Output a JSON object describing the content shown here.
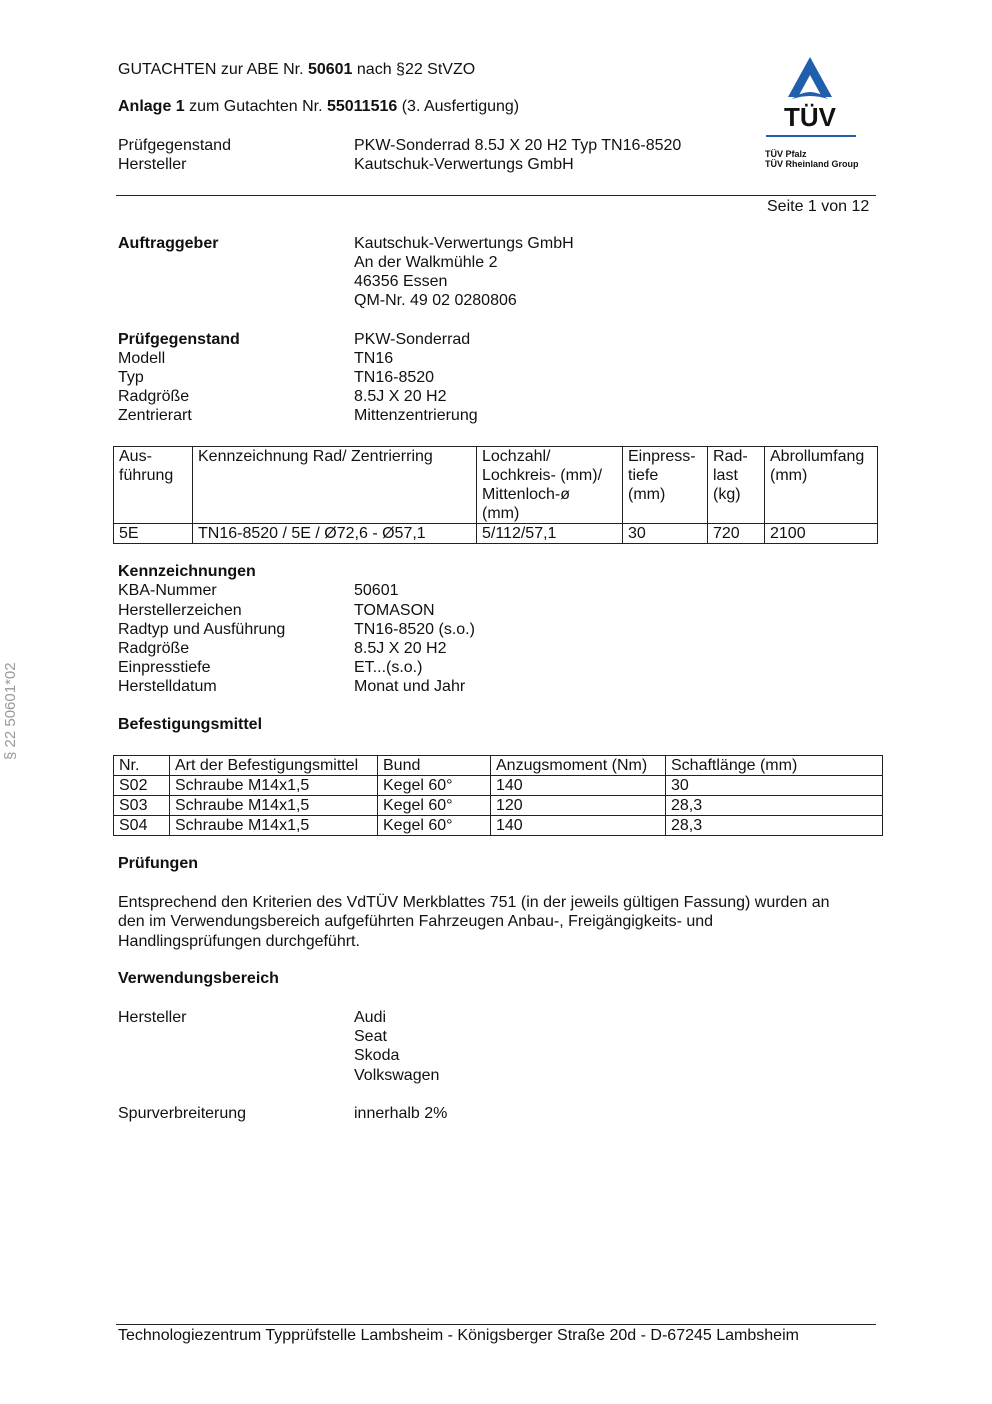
{
  "header": {
    "line1_pre": "GUTACHTEN zur ABE Nr. ",
    "line1_num": "50601",
    "line1_post": " nach §22 StVZO",
    "line2_pre": "Anlage 1",
    "line2_mid": " zum Gutachten Nr. ",
    "line2_num": "55011516",
    "line2_post": " (3. Ausfertigung)",
    "pruef_label": "Prüfgegenstand",
    "pruef_value": "PKW-Sonderrad 8.5J X 20 H2 Typ TN16-8520",
    "herst_label": "Hersteller",
    "herst_value": "Kautschuk-Verwertungs GmbH",
    "page": "Seite 1 von 12"
  },
  "logo": {
    "text": "TÜV",
    "sub1": "TÜV Pfalz",
    "sub2": "TÜV Rheinland Group",
    "color": "#1f5fae"
  },
  "side_text": "§ 22  50601*02",
  "auftraggeber": {
    "label": "Auftraggeber",
    "lines": [
      "Kautschuk-Verwertungs GmbH",
      "An der Walkmühle 2",
      "46356 Essen",
      "QM-Nr. 49 02 0280806"
    ]
  },
  "pruefgegenstand": {
    "rows": [
      {
        "label": "Prüfgegenstand",
        "value": "PKW-Sonderrad"
      },
      {
        "label": "Modell",
        "value": "TN16"
      },
      {
        "label": "Typ",
        "value": "TN16-8520"
      },
      {
        "label": "Radgröße",
        "value": "8.5J X 20 H2"
      },
      {
        "label": "Zentrierart",
        "value": "Mittenzentrierung"
      }
    ]
  },
  "table1": {
    "headers": [
      "Aus-\nführung",
      "Kennzeichnung Rad/ Zentrierring",
      "Lochzahl/\nLochkreis- (mm)/\nMittenloch-ø\n(mm)",
      "Einpress-\ntiefe\n(mm)",
      "Rad-\nlast\n(kg)",
      "Abrollumfang\n(mm)"
    ],
    "rows": [
      [
        "5E",
        "TN16-8520 / 5E / Ø72,6 - Ø57,1",
        "5/112/57,1",
        "30",
        "720",
        "2100"
      ]
    ]
  },
  "kennzeichnungen": {
    "title": "Kennzeichnungen",
    "rows": [
      {
        "label": "KBA-Nummer",
        "value": "50601"
      },
      {
        "label": "Herstellerzeichen",
        "value": "TOMASON"
      },
      {
        "label": "Radtyp und Ausführung",
        "value": "TN16-8520 (s.o.)"
      },
      {
        "label": "Radgröße",
        "value": "8.5J X 20 H2"
      },
      {
        "label": "Einpresstiefe",
        "value": "ET...(s.o.)"
      },
      {
        "label": "Herstelldatum",
        "value": "Monat und Jahr"
      }
    ]
  },
  "befestigung": {
    "title": "Befestigungsmittel",
    "headers": [
      "Nr.",
      "Art der Befestigungsmittel",
      "Bund",
      "Anzugsmoment (Nm)",
      "Schaftlänge (mm)"
    ],
    "rows": [
      [
        "S02",
        "Schraube M14x1,5",
        "Kegel 60°",
        "140",
        "30"
      ],
      [
        "S03",
        "Schraube M14x1,5",
        "Kegel 60°",
        "120",
        "28,3"
      ],
      [
        "S04",
        "Schraube M14x1,5",
        "Kegel 60°",
        "140",
        "28,3"
      ]
    ]
  },
  "pruefungen": {
    "title": "Prüfungen",
    "lines": [
      "Entsprechend den Kriterien des VdTÜV Merkblattes 751 (in der jeweils gültigen Fassung) wurden an",
      "den im Verwendungsbereich aufgeführten Fahrzeugen Anbau-, Freigängigkeits- und",
      "Handlingsprüfungen durchgeführt."
    ]
  },
  "verwendung": {
    "title": "Verwendungsbereich",
    "herst_label": "Hersteller",
    "herst_values": [
      "Audi",
      "Seat",
      "Skoda",
      "Volkswagen"
    ],
    "spur_label": "Spurverbreiterung",
    "spur_value": "innerhalb 2%"
  },
  "footer": "Technologiezentrum Typprüfstelle Lambsheim - Königsberger Straße 20d - D-67245 Lambsheim"
}
